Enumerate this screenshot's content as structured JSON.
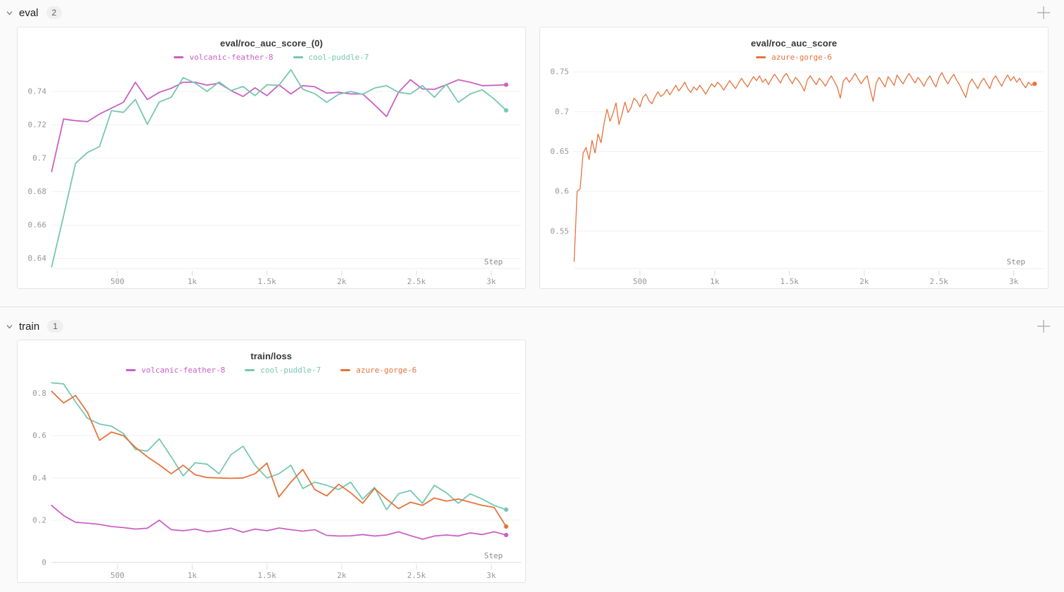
{
  "sections": [
    {
      "label": "eval",
      "count": "2"
    },
    {
      "label": "train",
      "count": "1"
    }
  ],
  "icons": {
    "collapse": "chevron-down-icon",
    "add_panel": "plus-icon"
  },
  "colors": {
    "run_volcanic_feather_8": "#ca60c5",
    "run_cool_puddle_7": "#76c7b1",
    "run_azure_gorge_6": "#e5733b",
    "grid": "#f0f0f0",
    "axis_text": "#979797"
  },
  "chart_data": [
    {
      "type": "line",
      "title": "eval/roc_auc_score_(0)",
      "xlabel": "Step",
      "grid": true,
      "legend_position": "top",
      "xlim": [
        58,
        3200
      ],
      "ylim": [
        0.634,
        0.7535
      ],
      "x_tick_values": [
        500,
        1000,
        1500,
        2000,
        2500,
        3000
      ],
      "x_tick_labels": [
        "500",
        "1k",
        "1.5k",
        "2k",
        "2.5k",
        "3k"
      ],
      "y_tick_values": [
        0.64,
        0.66,
        0.68,
        0.7,
        0.72,
        0.74
      ],
      "y_tick_labels": [
        "0.64",
        "0.66",
        "0.68",
        "0.7",
        "0.72",
        "0.74"
      ],
      "series": [
        {
          "name": "volcanic-feather-8",
          "color": "#ca60c5",
          "line_width": 1.8,
          "x_start": 60,
          "x_step": 80,
          "values": [
            0.692,
            0.7235,
            0.7225,
            0.722,
            0.7265,
            0.73,
            0.7335,
            0.7455,
            0.7352,
            0.7395,
            0.7419,
            0.7455,
            0.7455,
            0.7438,
            0.745,
            0.7405,
            0.737,
            0.7422,
            0.7375,
            0.744,
            0.7385,
            0.7435,
            0.7428,
            0.739,
            0.7395,
            0.7385,
            0.7385,
            0.732,
            0.725,
            0.7395,
            0.747,
            0.7415,
            0.7413,
            0.744,
            0.747,
            0.7455,
            0.7435,
            0.7437,
            0.744
          ]
        },
        {
          "name": "cool-puddle-7",
          "color": "#76c7b1",
          "line_width": 1.8,
          "x_start": 60,
          "x_step": 80,
          "values": [
            0.635,
            0.6655,
            0.697,
            0.7035,
            0.707,
            0.7285,
            0.7275,
            0.7352,
            0.7204,
            0.7337,
            0.7365,
            0.7483,
            0.745,
            0.74,
            0.7457,
            0.7405,
            0.743,
            0.7375,
            0.744,
            0.7437,
            0.753,
            0.7413,
            0.7387,
            0.7335,
            0.7383,
            0.74,
            0.7383,
            0.742,
            0.7435,
            0.7395,
            0.7385,
            0.7435,
            0.7365,
            0.7443,
            0.7335,
            0.7385,
            0.741,
            0.7355,
            0.7287
          ]
        }
      ]
    },
    {
      "type": "line",
      "title": "eval/roc_auc_score",
      "xlabel": "Step",
      "grid": true,
      "legend_position": "top",
      "xlim": [
        58,
        3200
      ],
      "ylim": [
        0.503,
        0.7537
      ],
      "x_tick_values": [
        500,
        1000,
        1500,
        2000,
        2500,
        3000
      ],
      "x_tick_labels": [
        "500",
        "1k",
        "1.5k",
        "2k",
        "2.5k",
        "3k"
      ],
      "y_tick_values": [
        0.55,
        0.6,
        0.65,
        0.7,
        0.75
      ],
      "y_tick_labels": [
        "0.55",
        "0.6",
        "0.65",
        "0.7",
        "0.75"
      ],
      "series": [
        {
          "name": "azure-gorge-6",
          "color": "#e5733b",
          "line_width": 1.3,
          "x_start": 60,
          "x_step": 20,
          "values": [
            0.512,
            0.6,
            0.603,
            0.648,
            0.655,
            0.64,
            0.664,
            0.648,
            0.672,
            0.661,
            0.685,
            0.703,
            0.688,
            0.698,
            0.711,
            0.684,
            0.697,
            0.712,
            0.699,
            0.705,
            0.717,
            0.713,
            0.706,
            0.718,
            0.722,
            0.714,
            0.71,
            0.718,
            0.725,
            0.719,
            0.722,
            0.728,
            0.721,
            0.727,
            0.733,
            0.726,
            0.731,
            0.737,
            0.729,
            0.724,
            0.731,
            0.727,
            0.733,
            0.728,
            0.722,
            0.729,
            0.735,
            0.731,
            0.737,
            0.733,
            0.727,
            0.733,
            0.739,
            0.734,
            0.729,
            0.736,
            0.742,
            0.736,
            0.731,
            0.738,
            0.744,
            0.739,
            0.745,
            0.737,
            0.741,
            0.734,
            0.741,
            0.747,
            0.742,
            0.736,
            0.744,
            0.748,
            0.741,
            0.735,
            0.743,
            0.739,
            0.733,
            0.726,
            0.74,
            0.745,
            0.739,
            0.734,
            0.742,
            0.738,
            0.732,
            0.739,
            0.745,
            0.738,
            0.731,
            0.717,
            0.738,
            0.743,
            0.737,
            0.742,
            0.748,
            0.741,
            0.735,
            0.741,
            0.745,
            0.728,
            0.713,
            0.736,
            0.743,
            0.737,
            0.731,
            0.744,
            0.739,
            0.733,
            0.746,
            0.74,
            0.735,
            0.742,
            0.748,
            0.742,
            0.736,
            0.743,
            0.738,
            0.732,
            0.74,
            0.745,
            0.737,
            0.731,
            0.743,
            0.749,
            0.741,
            0.735,
            0.742,
            0.747,
            0.739,
            0.733,
            0.725,
            0.718,
            0.734,
            0.741,
            0.735,
            0.729,
            0.737,
            0.742,
            0.735,
            0.729,
            0.74,
            0.745,
            0.738,
            0.732,
            0.74,
            0.746,
            0.739,
            0.744,
            0.737,
            0.742,
            0.735,
            0.73,
            0.737,
            0.733,
            0.735
          ]
        }
      ]
    },
    {
      "type": "line",
      "title": "train/loss",
      "xlabel": "Step",
      "grid": true,
      "legend_position": "top",
      "xlim": [
        58,
        3200
      ],
      "ylim": [
        0,
        0.855
      ],
      "x_tick_values": [
        500,
        1000,
        1500,
        2000,
        2500,
        3000
      ],
      "x_tick_labels": [
        "500",
        "1k",
        "1.5k",
        "2k",
        "2.5k",
        "3k"
      ],
      "y_tick_values": [
        0,
        0.2,
        0.4,
        0.6,
        0.8
      ],
      "y_tick_labels": [
        "0",
        "0.2",
        "0.4",
        "0.6",
        "0.8"
      ],
      "series": [
        {
          "name": "volcanic-feather-8",
          "color": "#ca60c5",
          "line_width": 1.8,
          "x_start": 60,
          "x_step": 80,
          "values": [
            0.27,
            0.222,
            0.19,
            0.186,
            0.18,
            0.17,
            0.165,
            0.158,
            0.162,
            0.2,
            0.155,
            0.15,
            0.158,
            0.145,
            0.152,
            0.162,
            0.143,
            0.158,
            0.15,
            0.163,
            0.155,
            0.148,
            0.155,
            0.128,
            0.125,
            0.126,
            0.132,
            0.125,
            0.13,
            0.145,
            0.127,
            0.11,
            0.125,
            0.13,
            0.125,
            0.14,
            0.132,
            0.145,
            0.13
          ]
        },
        {
          "name": "cool-puddle-7",
          "color": "#76c7b1",
          "line_width": 1.8,
          "x_start": 60,
          "x_step": 80,
          "values": [
            0.85,
            0.845,
            0.76,
            0.682,
            0.655,
            0.645,
            0.61,
            0.535,
            0.527,
            0.585,
            0.5,
            0.41,
            0.472,
            0.465,
            0.42,
            0.51,
            0.55,
            0.46,
            0.4,
            0.42,
            0.46,
            0.35,
            0.38,
            0.365,
            0.345,
            0.38,
            0.3,
            0.355,
            0.25,
            0.325,
            0.34,
            0.28,
            0.365,
            0.33,
            0.28,
            0.325,
            0.3,
            0.27,
            0.25
          ]
        },
        {
          "name": "azure-gorge-6",
          "color": "#e5733b",
          "line_width": 1.8,
          "x_start": 60,
          "x_step": 80,
          "values": [
            0.81,
            0.755,
            0.79,
            0.71,
            0.578,
            0.617,
            0.6,
            0.545,
            0.5,
            0.462,
            0.42,
            0.46,
            0.415,
            0.402,
            0.4,
            0.398,
            0.4,
            0.42,
            0.47,
            0.31,
            0.38,
            0.44,
            0.345,
            0.315,
            0.37,
            0.33,
            0.28,
            0.35,
            0.3,
            0.255,
            0.285,
            0.27,
            0.305,
            0.29,
            0.3,
            0.285,
            0.27,
            0.26,
            0.17
          ]
        }
      ]
    }
  ]
}
